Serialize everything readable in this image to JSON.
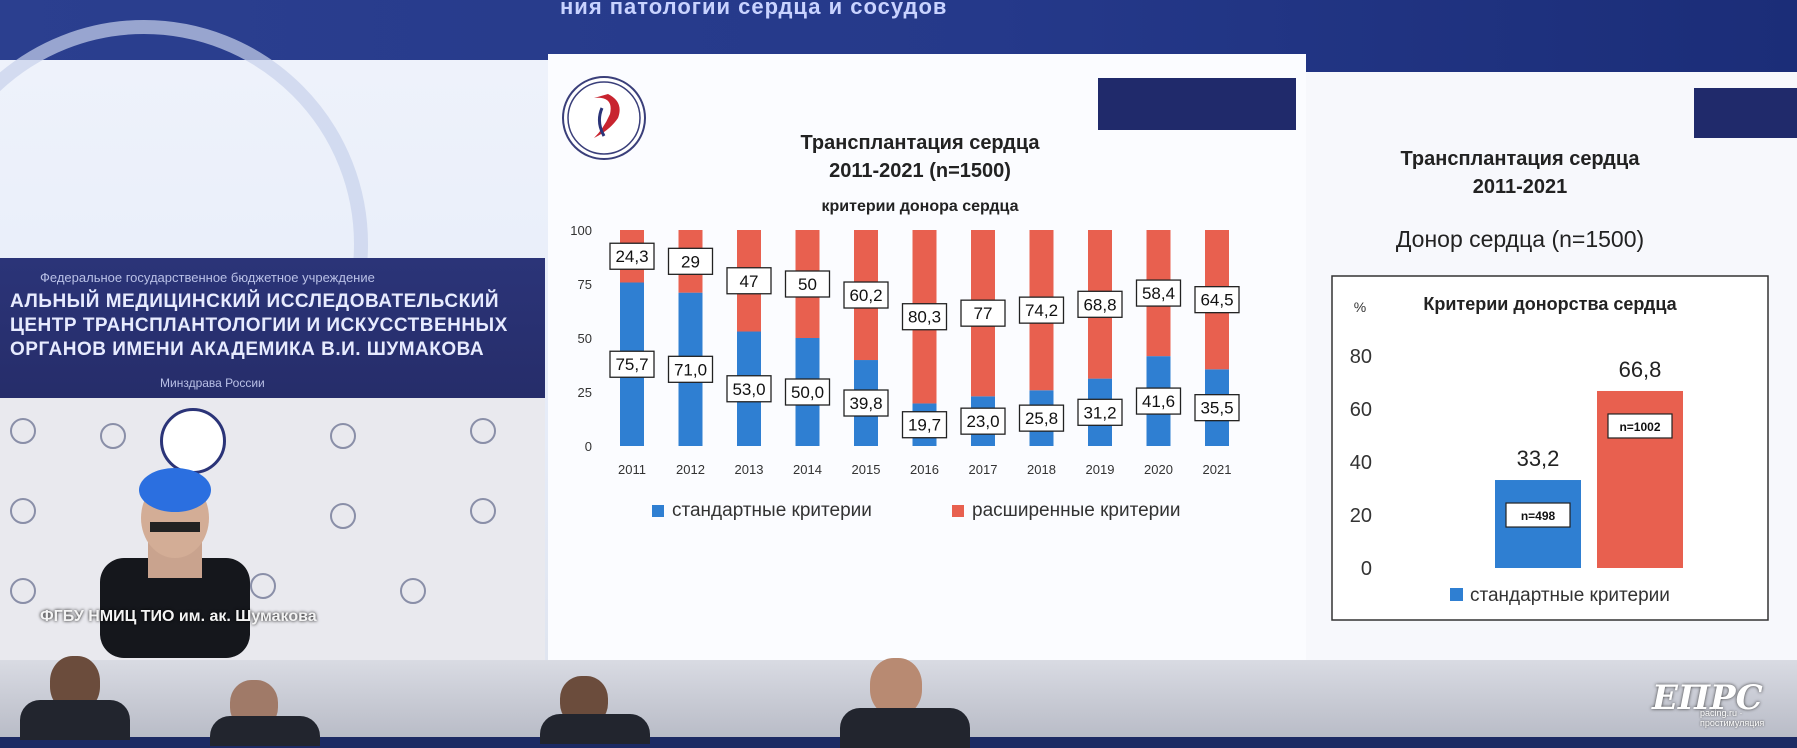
{
  "banner": {
    "text": "ния патологии сердца и сосудов"
  },
  "video": {
    "line1": "Федеральное государственное бюджетное учреждение",
    "line2": "АЛЬНЫЙ МЕДИЦИНСКИЙ ИССЛЕДОВАТЕЛЬСКИЙ ЦЕНТР ТРАНСПЛАНТОЛОГИИ И ИСКУССТВЕННЫХ ОРГАНОВ ИМЕНИ АКАДЕМИКА В.И. ШУМАКОВА",
    "line3": "Минздрава России",
    "caption": "ФГБУ НМИЦ ТИО им. ак. Шумакова"
  },
  "chart_data": [
    {
      "type": "bar",
      "stacked": true,
      "percent_stacked": true,
      "title": "Трансплантация сердца",
      "title_line2": "2011-2021 (n=1500)",
      "subtitle": "критерии донора сердца",
      "categories": [
        "2011",
        "2012",
        "2013",
        "2014",
        "2015",
        "2016",
        "2017",
        "2018",
        "2019",
        "2020",
        "2021"
      ],
      "series": [
        {
          "name": "стандартные критерии",
          "color": "#2f7fd2",
          "values": [
            75.7,
            71.0,
            53.0,
            50.0,
            39.8,
            19.7,
            23.0,
            25.8,
            31.2,
            41.6,
            35.5
          ],
          "labels": [
            "75,7",
            "71,0",
            "53,0",
            "50,0",
            "39,8",
            "19,7",
            "23,0",
            "25,8",
            "31,2",
            "41,6",
            "35,5"
          ]
        },
        {
          "name": "расширенные критерии",
          "color": "#e8604f",
          "values": [
            24.3,
            29,
            47,
            50,
            60.2,
            80.3,
            77,
            74.2,
            68.8,
            58.4,
            64.5
          ],
          "labels": [
            "24,3",
            "29",
            "47",
            "50",
            "60,2",
            "80,3",
            "77",
            "74,2",
            "68,8",
            "58,4",
            "64,5"
          ]
        }
      ],
      "yticks": [
        "0",
        "25",
        "50",
        "75",
        "100"
      ],
      "ylim": [
        0,
        100
      ],
      "legend": "bottom"
    },
    {
      "type": "bar",
      "title": "Трансплантация сердца",
      "title_line2": "2011-2021",
      "subtitle": "Донор сердца (n=1500)",
      "inner_title": "Критерии донорства сердца",
      "ylabel": "%",
      "yticks": [
        "0",
        "20",
        "40",
        "60",
        "80"
      ],
      "ylim": [
        0,
        80
      ],
      "bars": [
        {
          "value": 33.2,
          "label": "33,2",
          "n": "n=498",
          "color": "#2f7fd2"
        },
        {
          "value": 66.8,
          "label": "66,8",
          "n": "n=1002",
          "color": "#e8604f"
        }
      ],
      "legend": "bottom",
      "legend_item": "стандартные критерии"
    }
  ],
  "watermark": {
    "main": "ЕПРС",
    "sub": "pacing.ru · простимуляция"
  }
}
